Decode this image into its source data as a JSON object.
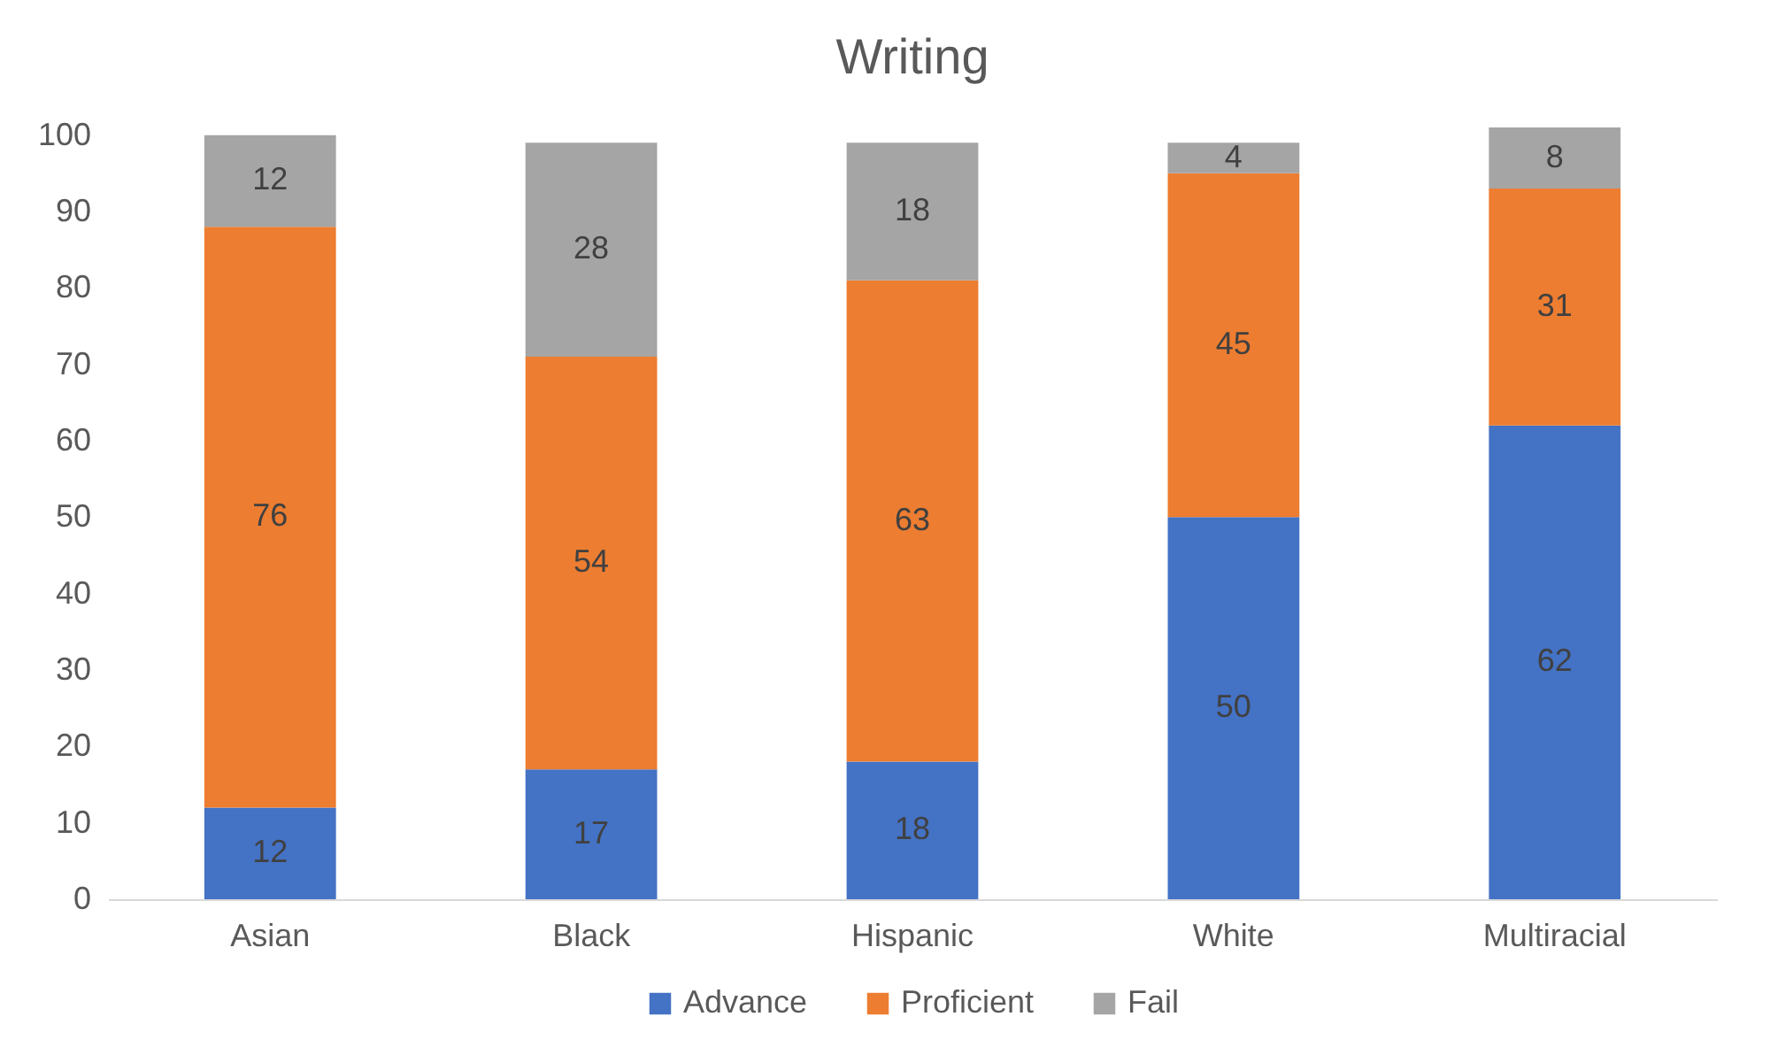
{
  "chart_data": {
    "type": "bar",
    "title": "Writing",
    "stacked": true,
    "categories": [
      "Asian",
      "Black",
      "Hispanic",
      "White",
      "Multiracial"
    ],
    "series": [
      {
        "name": "Advance",
        "color": "#4472c4",
        "values": [
          12,
          17,
          18,
          50,
          62
        ]
      },
      {
        "name": "Proficient",
        "color": "#ed7d31",
        "values": [
          76,
          54,
          63,
          45,
          31
        ]
      },
      {
        "name": "Fail",
        "color": "#a5a5a5",
        "values": [
          12,
          28,
          18,
          4,
          8
        ]
      }
    ],
    "ylim": [
      0,
      101
    ],
    "yticks": [
      0,
      10,
      20,
      30,
      40,
      50,
      60,
      70,
      80,
      90,
      100
    ],
    "grid": false,
    "legend": "bottom",
    "data_labels": true
  }
}
